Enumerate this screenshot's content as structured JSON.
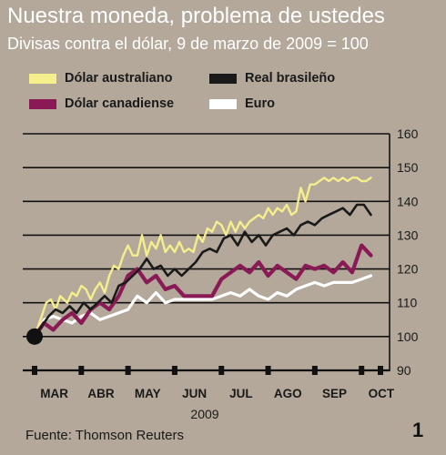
{
  "title": "Nuestra moneda, problema de ustedes",
  "subtitle": "Divisas contra el dólar, 9 de marzo de 2009 = 100",
  "source": "Fuente: Thomson Reuters",
  "page_number": "1",
  "colors": {
    "background": "#b3a89a",
    "australiano": "#f4ee8c",
    "brasileno": "#1a1a1a",
    "canadiense": "#8a1a55",
    "euro": "#ffffff",
    "grid": "#111111"
  },
  "chart_data": {
    "type": "line",
    "title": "Nuestra moneda, problema de ustedes",
    "subtitle": "Divisas contra el dólar, 9 de marzo de 2009 = 100",
    "xlabel": "2009",
    "ylabel": "",
    "categories": [
      "MAR",
      "ABR",
      "MAY",
      "JUN",
      "JUL",
      "AGO",
      "SEP",
      "OCT"
    ],
    "xlim": [
      0,
      7.6
    ],
    "ylim": [
      90,
      160
    ],
    "yticks": [
      90,
      100,
      110,
      120,
      130,
      140,
      150,
      160
    ],
    "grid": true,
    "legend": "top-left",
    "base_point": {
      "x": 0,
      "y": 100
    },
    "series": [
      {
        "name": "Dólar australiano",
        "key": "australiano",
        "x": [
          0,
          0.1,
          0.25,
          0.35,
          0.45,
          0.55,
          0.7,
          0.8,
          0.9,
          1.0,
          1.1,
          1.2,
          1.3,
          1.4,
          1.5,
          1.6,
          1.7,
          1.8,
          1.9,
          2.0,
          2.1,
          2.2,
          2.3,
          2.4,
          2.5,
          2.6,
          2.7,
          2.8,
          2.9,
          3.0,
          3.1,
          3.2,
          3.3,
          3.4,
          3.5,
          3.6,
          3.7,
          3.8,
          3.9,
          4.0,
          4.1,
          4.2,
          4.3,
          4.4,
          4.5,
          4.6,
          4.7,
          4.8,
          4.9,
          5.0,
          5.1,
          5.2,
          5.3,
          5.4,
          5.5,
          5.6,
          5.7,
          5.8,
          5.9,
          6.0,
          6.1,
          6.2,
          6.3,
          6.4,
          6.5,
          6.6,
          6.7,
          6.8,
          6.9,
          7.0,
          7.1,
          7.2
        ],
        "y": [
          100,
          104,
          110,
          111,
          108,
          112,
          110,
          113,
          112,
          115,
          114,
          111,
          114,
          116,
          113,
          118,
          121,
          120,
          124,
          127,
          124,
          124,
          130,
          124,
          128,
          126,
          130,
          125,
          127,
          125,
          128,
          125,
          126,
          125,
          130,
          128,
          132,
          131,
          134,
          133,
          130,
          134,
          131,
          134,
          132,
          134,
          135,
          136,
          135,
          138,
          136,
          138,
          137,
          139,
          136,
          137,
          144,
          140,
          145,
          145,
          146,
          147,
          146,
          147,
          146,
          147,
          146,
          147,
          147,
          146,
          146,
          147
        ]
      },
      {
        "name": "Real brasileño",
        "key": "brasileno",
        "x": [
          0,
          0.15,
          0.3,
          0.45,
          0.6,
          0.75,
          0.9,
          1.05,
          1.2,
          1.35,
          1.5,
          1.65,
          1.8,
          1.95,
          2.1,
          2.25,
          2.4,
          2.55,
          2.7,
          2.85,
          3.0,
          3.15,
          3.3,
          3.45,
          3.6,
          3.75,
          3.9,
          4.05,
          4.2,
          4.35,
          4.5,
          4.65,
          4.8,
          4.95,
          5.1,
          5.25,
          5.4,
          5.55,
          5.7,
          5.85,
          6.0,
          6.15,
          6.3,
          6.45,
          6.6,
          6.75,
          6.9,
          7.05,
          7.2
        ],
        "y": [
          100,
          103,
          106,
          108,
          107,
          109,
          107,
          110,
          108,
          110,
          112,
          110,
          115,
          116,
          118,
          120,
          123,
          120,
          121,
          118,
          120,
          118,
          120,
          122,
          125,
          126,
          125,
          129,
          130,
          127,
          131,
          128,
          130,
          127,
          130,
          131,
          132,
          130,
          133,
          134,
          133,
          135,
          136,
          137,
          138,
          136,
          139,
          139,
          136
        ]
      },
      {
        "name": "Dólar canadiense",
        "key": "canadiense",
        "x": [
          0,
          0.2,
          0.4,
          0.6,
          0.8,
          1.0,
          1.2,
          1.4,
          1.6,
          1.8,
          2.0,
          2.2,
          2.4,
          2.6,
          2.8,
          3.0,
          3.2,
          3.4,
          3.6,
          3.8,
          4.0,
          4.2,
          4.4,
          4.6,
          4.8,
          5.0,
          5.2,
          5.4,
          5.6,
          5.8,
          6.0,
          6.2,
          6.4,
          6.6,
          6.8,
          7.0,
          7.2
        ],
        "y": [
          100,
          104,
          102,
          105,
          107,
          104,
          108,
          110,
          108,
          112,
          118,
          120,
          116,
          118,
          114,
          115,
          112,
          112,
          112,
          112,
          117,
          119,
          121,
          119,
          122,
          118,
          121,
          119,
          117,
          121,
          120,
          121,
          119,
          122,
          119,
          127,
          124
        ]
      },
      {
        "name": "Euro",
        "key": "euro",
        "x": [
          0,
          0.2,
          0.4,
          0.6,
          0.8,
          1.0,
          1.2,
          1.4,
          1.6,
          1.8,
          2.0,
          2.2,
          2.4,
          2.6,
          2.8,
          3.0,
          3.2,
          3.4,
          3.6,
          3.8,
          4.0,
          4.2,
          4.4,
          4.6,
          4.8,
          5.0,
          5.2,
          5.4,
          5.6,
          5.8,
          6.0,
          6.2,
          6.4,
          6.6,
          6.8,
          7.0,
          7.2
        ],
        "y": [
          100,
          105,
          106,
          105,
          104,
          106,
          107,
          105,
          106,
          107,
          108,
          112,
          110,
          113,
          110,
          111,
          111,
          111,
          111,
          111,
          112,
          113,
          112,
          114,
          112,
          111,
          113,
          112,
          114,
          115,
          116,
          115,
          116,
          116,
          116,
          117,
          118
        ]
      }
    ]
  }
}
